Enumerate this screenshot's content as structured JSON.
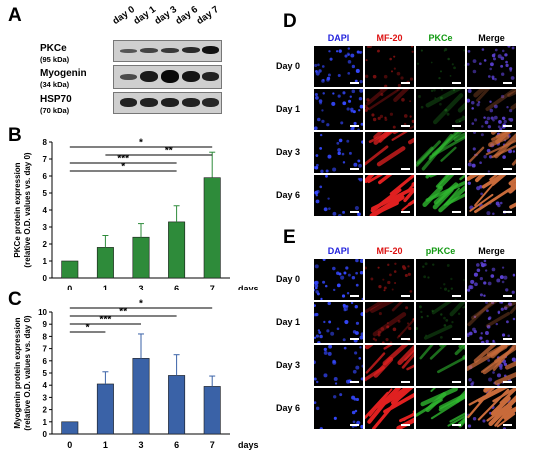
{
  "panels": {
    "a": "A",
    "b": "B",
    "c": "C",
    "d": "D",
    "e": "E"
  },
  "blot": {
    "days": [
      "day 0",
      "day 1",
      "day 3",
      "day 6",
      "day 7"
    ],
    "rows": [
      {
        "name": "PKCe",
        "kda": "(95 kDa)"
      },
      {
        "name": "Myogenin",
        "kda": "(34 kDa)"
      },
      {
        "name": "HSP70",
        "kda": "(70 kDa)"
      }
    ]
  },
  "chart_data": [
    {
      "type": "bar",
      "categories": [
        "0",
        "1",
        "3",
        "6",
        "7"
      ],
      "values": [
        1.0,
        1.8,
        2.4,
        3.3,
        5.9
      ],
      "errors": [
        0,
        0.7,
        0.8,
        0.95,
        1.5
      ],
      "ylabel": "PKCe protein expression (relative O.D. values vs. day 0)",
      "ylabel_lines": [
        "PKCe protein expression",
        "(relative O.D. values vs. day 0)"
      ],
      "xlabel": "days",
      "ylim": [
        0,
        8
      ],
      "yticks": [
        "0",
        "1",
        "2",
        "3",
        "4",
        "5",
        "6",
        "7",
        "8"
      ],
      "color": "#2e8b3a",
      "significance": [
        {
          "from": "0",
          "to": "7",
          "label": "*"
        },
        {
          "from": "0",
          "to": "7",
          "label": "**",
          "start": "1"
        },
        {
          "from": "0",
          "to": "6",
          "label": "***"
        },
        {
          "from": "0",
          "to": "6",
          "label": "*"
        }
      ]
    },
    {
      "type": "bar",
      "categories": [
        "0",
        "1",
        "3",
        "6",
        "7"
      ],
      "values": [
        1.0,
        4.1,
        6.2,
        4.8,
        3.9
      ],
      "errors": [
        0,
        1.0,
        2.0,
        1.7,
        0.85
      ],
      "ylabel": "Myogenin protein expression (relative O.D. values vs. day 0)",
      "ylabel_lines": [
        "Myogenin protein expression",
        "(relative O.D. values vs. day 0)"
      ],
      "xlabel": "days",
      "ylim": [
        0,
        10
      ],
      "yticks": [
        "0",
        "1",
        "2",
        "3",
        "4",
        "5",
        "6",
        "7",
        "8",
        "9",
        "10"
      ],
      "color": "#3a62a7",
      "significance": [
        {
          "from": "0",
          "to": "7",
          "label": "*"
        },
        {
          "from": "0",
          "to": "6",
          "label": "**"
        },
        {
          "from": "0",
          "to": "3",
          "label": "***"
        },
        {
          "from": "0",
          "to": "1",
          "label": "*"
        }
      ]
    }
  ],
  "micro_d": {
    "columns": [
      {
        "label": "DAPI",
        "color": "#2222dd"
      },
      {
        "label": "MF-20",
        "color": "#dd1111"
      },
      {
        "label": "PKCe",
        "color": "#119911"
      },
      {
        "label": "Merge",
        "color": "#000000"
      }
    ],
    "rows": [
      "Day 0",
      "Day 1",
      "Day 3",
      "Day 6"
    ]
  },
  "micro_e": {
    "columns": [
      {
        "label": "DAPI",
        "color": "#2222dd"
      },
      {
        "label": "MF-20",
        "color": "#dd1111"
      },
      {
        "label": "pPKCe",
        "color": "#119911"
      },
      {
        "label": "Merge",
        "color": "#000000"
      }
    ],
    "rows": [
      "Day 0",
      "Day 1",
      "Day 3",
      "Day 6"
    ]
  }
}
